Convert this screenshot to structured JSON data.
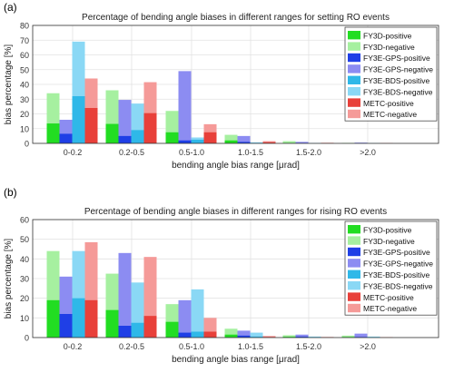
{
  "categories": [
    "0-0.2",
    "0.2-0.5",
    "0.5-1.0",
    "1.0-1.5",
    "1.5-2.0",
    ">2.0"
  ],
  "legend": [
    {
      "name": "FY3D-positive",
      "color": "#22dd22"
    },
    {
      "name": "FY3D-negative",
      "color": "#a6f0a0"
    },
    {
      "name": "FY3E-GPS-positive",
      "color": "#1f3fe6"
    },
    {
      "name": "FY3E-GPS-negative",
      "color": "#8c8cf2"
    },
    {
      "name": "FY3E-BDS-positive",
      "color": "#2fb8e8"
    },
    {
      "name": "FY3E-BDS-negative",
      "color": "#8ad8f5"
    },
    {
      "name": "METC-positive",
      "color": "#e8403a"
    },
    {
      "name": "METC-negative",
      "color": "#f59a98"
    }
  ],
  "chart_data": [
    {
      "type": "bar",
      "panel_label": "(a)",
      "title": "Percentage of bending angle biases in different ranges for setting RO events",
      "xlabel": "bending angle bias range [μrad]",
      "ylabel": "bias percentage [%]",
      "ylim": [
        0,
        80
      ],
      "yticks": [
        0,
        10,
        20,
        30,
        40,
        50,
        60,
        70,
        80
      ],
      "grid": true,
      "legend_position": "top-right",
      "categories": [
        "0-0.2",
        "0.2-0.5",
        "0.5-1.0",
        "1.0-1.5",
        "1.5-2.0",
        ">2.0"
      ],
      "series": [
        {
          "name": "FY3D",
          "positive": [
            13.5,
            13.2,
            7.5,
            2.0,
            0.3,
            0.1
          ],
          "negative": [
            34.0,
            36.0,
            22.0,
            5.8,
            1.5,
            0.3
          ]
        },
        {
          "name": "FY3E-GPS",
          "positive": [
            6.5,
            5.0,
            2.0,
            1.0,
            0.2,
            0.1
          ],
          "negative": [
            16.0,
            29.5,
            49.0,
            5.0,
            1.0,
            0.5
          ]
        },
        {
          "name": "FY3E-BDS",
          "positive": [
            32.0,
            9.0,
            2.5,
            0.3,
            0.1,
            0.1
          ],
          "negative": [
            69.0,
            27.0,
            4.0,
            0.7,
            0.2,
            0.1
          ]
        },
        {
          "name": "METC",
          "positive": [
            24.0,
            20.5,
            7.5,
            0.8,
            0.2,
            0.1
          ],
          "negative": [
            44.0,
            41.5,
            13.0,
            1.5,
            0.4,
            0.2
          ]
        }
      ]
    },
    {
      "type": "bar",
      "panel_label": "(b)",
      "title": "Percentage of bending angle biases in different ranges for rising RO events",
      "xlabel": "bending angle bias range [μrad]",
      "ylabel": "bias percentage [%]",
      "ylim": [
        0,
        60
      ],
      "yticks": [
        0,
        10,
        20,
        30,
        40,
        50,
        60
      ],
      "grid": true,
      "legend_position": "top-right",
      "categories": [
        "0-0.2",
        "0.2-0.5",
        "0.5-1.0",
        "1.0-1.5",
        "1.5-2.0",
        ">2.0"
      ],
      "series": [
        {
          "name": "FY3D",
          "positive": [
            19.0,
            14.0,
            8.0,
            1.5,
            0.4,
            0.3
          ],
          "negative": [
            44.0,
            32.5,
            17.0,
            4.5,
            1.2,
            1.0
          ]
        },
        {
          "name": "FY3E-GPS",
          "positive": [
            12.0,
            6.0,
            2.5,
            1.0,
            0.5,
            0.3
          ],
          "negative": [
            31.0,
            43.0,
            19.0,
            3.5,
            1.5,
            2.0
          ]
        },
        {
          "name": "FY3E-BDS",
          "positive": [
            20.0,
            7.5,
            3.0,
            0.5,
            0.2,
            0.1
          ],
          "negative": [
            44.0,
            28.0,
            24.5,
            2.5,
            0.5,
            0.5
          ]
        },
        {
          "name": "METC",
          "positive": [
            19.0,
            11.0,
            3.0,
            0.3,
            0.1,
            0.1
          ],
          "negative": [
            48.5,
            41.0,
            10.0,
            0.8,
            0.3,
            0.2
          ]
        }
      ]
    }
  ]
}
